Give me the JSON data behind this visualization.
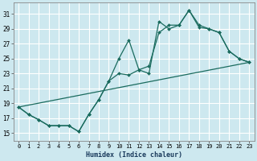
{
  "xlabel": "Humidex (Indice chaleur)",
  "bg_color": "#cde8ef",
  "grid_color": "#ffffff",
  "line_color": "#1a6b5e",
  "xlim": [
    -0.5,
    23.5
  ],
  "ylim": [
    14.0,
    32.5
  ],
  "yticks": [
    15,
    17,
    19,
    21,
    23,
    25,
    27,
    29,
    31
  ],
  "xticks": [
    0,
    1,
    2,
    3,
    4,
    5,
    6,
    7,
    8,
    9,
    10,
    11,
    12,
    13,
    14,
    15,
    16,
    17,
    18,
    19,
    20,
    21,
    22,
    23
  ],
  "line1_x": [
    0,
    1,
    2,
    3,
    4,
    5,
    6,
    7,
    8,
    9,
    10,
    11,
    12,
    13,
    14,
    15,
    16,
    17,
    18,
    19,
    20,
    21,
    22,
    23
  ],
  "line1_y": [
    18.5,
    17.5,
    16.8,
    16.0,
    16.0,
    16.0,
    15.2,
    17.5,
    19.5,
    22.0,
    25.0,
    27.5,
    23.5,
    23.0,
    30.0,
    29.0,
    29.5,
    31.5,
    29.2,
    29.0,
    28.5,
    26.0,
    25.0,
    24.5
  ],
  "line2_x": [
    0,
    1,
    2,
    3,
    4,
    5,
    6,
    7,
    8,
    9,
    10,
    11,
    12,
    13,
    14,
    15,
    16,
    17,
    18,
    19,
    20,
    21,
    22,
    23
  ],
  "line2_y": [
    18.5,
    17.5,
    16.8,
    16.0,
    16.0,
    16.0,
    15.2,
    17.5,
    19.5,
    22.0,
    23.0,
    22.8,
    23.5,
    24.0,
    28.5,
    29.5,
    29.5,
    31.5,
    29.5,
    29.0,
    28.5,
    26.0,
    25.0,
    24.5
  ],
  "line3_x": [
    0,
    23
  ],
  "line3_y": [
    18.5,
    24.5
  ],
  "marker_size": 2.0,
  "line_width": 0.9
}
